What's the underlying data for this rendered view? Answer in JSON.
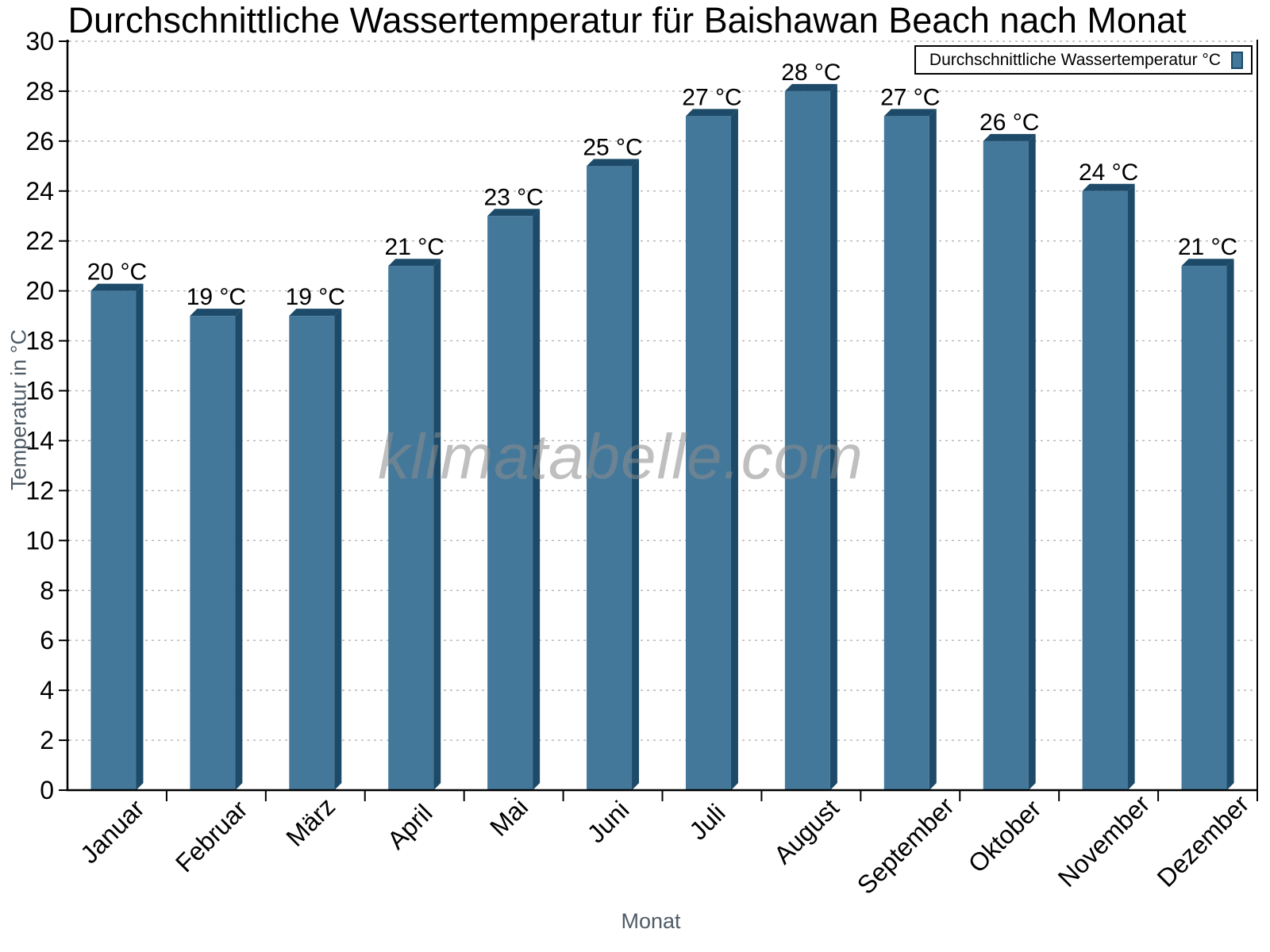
{
  "chart_data": {
    "type": "bar",
    "title": "Durchschnittliche Wassertemperatur für Baishawan Beach nach Monat",
    "xlabel": "Monat",
    "ylabel": "Temperatur in °C",
    "watermark": "klimatabelle.com",
    "legend": {
      "label": "Durchschnittliche Wassertemperatur °C",
      "position": "top-right"
    },
    "categories": [
      "Januar",
      "Februar",
      "März",
      "April",
      "Mai",
      "Juni",
      "Juli",
      "August",
      "September",
      "Oktober",
      "November",
      "Dezember"
    ],
    "values": [
      20,
      19,
      19,
      21,
      23,
      25,
      27,
      28,
      27,
      26,
      24,
      21
    ],
    "value_labels": [
      "20 °C",
      "19 °C",
      "19 °C",
      "21 °C",
      "23 °C",
      "25 °C",
      "27 °C",
      "28 °C",
      "27 °C",
      "26 °C",
      "24 °C",
      "21 °C"
    ],
    "unit": "°C",
    "ylim": [
      0,
      30
    ],
    "ytick_step": 2,
    "ytick_labels": [
      "0",
      "2",
      "4",
      "6",
      "8",
      "10",
      "12",
      "14",
      "16",
      "18",
      "20",
      "22",
      "24",
      "26",
      "28",
      "30"
    ],
    "grid": "horizontal-dotted",
    "xtick_label_rotation_deg": -45,
    "colors": {
      "bar_face": "#44789B",
      "bar_side": "#1C4A68",
      "grid": "#b5b5b5",
      "axis": "#000000",
      "text": "#000000",
      "muted_text": "#4f5b66",
      "watermark": "#8c8c8c",
      "background": "#ffffff"
    }
  }
}
